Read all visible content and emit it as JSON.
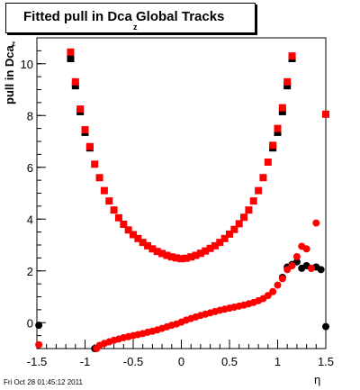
{
  "chart_data": {
    "type": "scatter",
    "title": "Fitted pull in Dca",
    "title_suffix": "Global Tracks",
    "title_subscript": "z",
    "xlabel": "η",
    "ylabel": "pull in Dca",
    "ylabel_subscript": "z",
    "xlim": [
      -1.5,
      1.5
    ],
    "ylim": [
      -1.0,
      11.0
    ],
    "x_ticks": [
      -1.5,
      -1,
      -0.5,
      0,
      0.5,
      1,
      1.5
    ],
    "x_tick_labels": [
      "-1.5",
      "-1",
      "-0.5",
      "0",
      "0.5",
      "1",
      "1.5"
    ],
    "y_ticks": [
      0,
      2,
      4,
      6,
      8,
      10
    ],
    "y_tick_labels": [
      "0",
      "2",
      "4",
      "6",
      "8",
      "10"
    ],
    "grid": false,
    "series": [
      {
        "color": "#000000",
        "marker": "square",
        "points": [
          [
            -1.15,
            10.2
          ],
          [
            -1.1,
            9.15
          ],
          [
            -1.05,
            8.15
          ],
          [
            -1.0,
            7.35
          ],
          [
            -0.95,
            6.75
          ],
          [
            0.95,
            6.75
          ],
          [
            1.0,
            7.35
          ],
          [
            1.05,
            8.15
          ],
          [
            1.1,
            9.15
          ],
          [
            1.15,
            10.2
          ]
        ]
      },
      {
        "color": "#ff0000",
        "marker": "square",
        "points": [
          [
            -1.15,
            10.45
          ],
          [
            -1.1,
            9.3
          ],
          [
            -1.05,
            8.25
          ],
          [
            -1.0,
            7.45
          ],
          [
            -0.95,
            6.8
          ],
          [
            -0.9,
            6.12
          ],
          [
            -0.85,
            5.6
          ],
          [
            -0.8,
            5.1
          ],
          [
            -0.75,
            4.7
          ],
          [
            -0.7,
            4.35
          ],
          [
            -0.65,
            4.05
          ],
          [
            -0.6,
            3.8
          ],
          [
            -0.55,
            3.58
          ],
          [
            -0.5,
            3.4
          ],
          [
            -0.45,
            3.25
          ],
          [
            -0.4,
            3.1
          ],
          [
            -0.35,
            2.97
          ],
          [
            -0.3,
            2.85
          ],
          [
            -0.25,
            2.75
          ],
          [
            -0.2,
            2.67
          ],
          [
            -0.15,
            2.6
          ],
          [
            -0.1,
            2.54
          ],
          [
            -0.05,
            2.5
          ],
          [
            0.0,
            2.47
          ],
          [
            0.05,
            2.49
          ],
          [
            0.1,
            2.54
          ],
          [
            0.15,
            2.6
          ],
          [
            0.2,
            2.68
          ],
          [
            0.25,
            2.77
          ],
          [
            0.3,
            2.87
          ],
          [
            0.35,
            2.97
          ],
          [
            0.4,
            3.1
          ],
          [
            0.45,
            3.25
          ],
          [
            0.5,
            3.42
          ],
          [
            0.55,
            3.6
          ],
          [
            0.6,
            3.82
          ],
          [
            0.65,
            4.07
          ],
          [
            0.7,
            4.35
          ],
          [
            0.75,
            4.7
          ],
          [
            0.8,
            5.1
          ],
          [
            0.85,
            5.6
          ],
          [
            0.9,
            6.2
          ],
          [
            0.95,
            6.85
          ],
          [
            1.0,
            7.5
          ],
          [
            1.05,
            8.3
          ],
          [
            1.1,
            9.3
          ],
          [
            1.15,
            10.3
          ],
          [
            1.5,
            8.05
          ]
        ]
      },
      {
        "color": "#000000",
        "marker": "circle",
        "points": [
          [
            -1.48,
            -0.1
          ],
          [
            -0.9,
            -1.0
          ],
          [
            1.05,
            1.75
          ],
          [
            1.1,
            2.15
          ],
          [
            1.15,
            2.25
          ],
          [
            1.2,
            2.35
          ],
          [
            1.25,
            2.1
          ],
          [
            1.3,
            2.2
          ],
          [
            1.35,
            2.1
          ],
          [
            1.4,
            2.15
          ],
          [
            1.45,
            2.05
          ],
          [
            1.5,
            -0.15
          ]
        ]
      },
      {
        "color": "#ff0000",
        "marker": "circle",
        "points": [
          [
            -1.48,
            -0.85
          ],
          [
            -0.88,
            -1.0
          ],
          [
            -0.85,
            -0.88
          ],
          [
            -0.8,
            -0.8
          ],
          [
            -0.75,
            -0.74
          ],
          [
            -0.7,
            -0.68
          ],
          [
            -0.65,
            -0.63
          ],
          [
            -0.6,
            -0.58
          ],
          [
            -0.55,
            -0.54
          ],
          [
            -0.5,
            -0.5
          ],
          [
            -0.45,
            -0.46
          ],
          [
            -0.4,
            -0.42
          ],
          [
            -0.35,
            -0.37
          ],
          [
            -0.3,
            -0.33
          ],
          [
            -0.25,
            -0.28
          ],
          [
            -0.2,
            -0.22
          ],
          [
            -0.15,
            -0.16
          ],
          [
            -0.1,
            -0.1
          ],
          [
            -0.05,
            -0.05
          ],
          [
            0.0,
            0.02
          ],
          [
            0.05,
            0.1
          ],
          [
            0.1,
            0.16
          ],
          [
            0.15,
            0.22
          ],
          [
            0.2,
            0.28
          ],
          [
            0.25,
            0.33
          ],
          [
            0.3,
            0.38
          ],
          [
            0.35,
            0.43
          ],
          [
            0.4,
            0.48
          ],
          [
            0.45,
            0.52
          ],
          [
            0.5,
            0.56
          ],
          [
            0.55,
            0.6
          ],
          [
            0.6,
            0.64
          ],
          [
            0.65,
            0.68
          ],
          [
            0.7,
            0.73
          ],
          [
            0.75,
            0.78
          ],
          [
            0.8,
            0.85
          ],
          [
            0.85,
            0.93
          ],
          [
            0.9,
            1.05
          ],
          [
            0.95,
            1.2
          ],
          [
            1.0,
            1.45
          ],
          [
            1.05,
            1.7
          ],
          [
            1.1,
            2.05
          ],
          [
            1.15,
            2.2
          ],
          [
            1.2,
            2.55
          ],
          [
            1.25,
            2.95
          ],
          [
            1.3,
            2.85
          ],
          [
            1.35,
            2.1
          ],
          [
            1.4,
            3.85
          ]
        ]
      }
    ]
  },
  "footer": "Fri Oct 28 01:45:12 2011"
}
